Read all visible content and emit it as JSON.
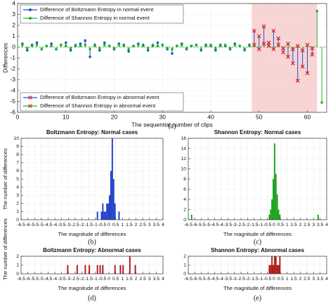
{
  "chart_data": [
    {
      "type": "stem",
      "caption": "(a)",
      "xlabel": "The sequential number of clips",
      "ylabel": "Differences",
      "xlim": [
        0,
        64
      ],
      "ylim": [
        -6,
        4
      ],
      "xticks": [
        0,
        10,
        20,
        30,
        40,
        50,
        60
      ],
      "yticks": [
        -6,
        -5,
        -4,
        -3,
        -2,
        -1,
        0,
        1,
        2,
        3,
        4
      ],
      "grid": true,
      "shaded_region": [
        48.5,
        62
      ],
      "shaded_color": "#f9d4d4",
      "series": [
        {
          "name": "Difference of Boltzmann Entropy in normal event",
          "color": "#1f4fd0",
          "marker": "circle",
          "legend": "upper left",
          "x": [
            1,
            2,
            3,
            4,
            5,
            6,
            7,
            8,
            9,
            10,
            11,
            12,
            13,
            14,
            15,
            16,
            17,
            18,
            19,
            20,
            21,
            22,
            23,
            24,
            25,
            26,
            27,
            28,
            29,
            30,
            31,
            32,
            33,
            34,
            35,
            36,
            37,
            38,
            39,
            40,
            41,
            42,
            43,
            44,
            45,
            46,
            47,
            48
          ],
          "values": [
            0.3,
            -0.3,
            0.2,
            0.4,
            -0.2,
            0.1,
            0.3,
            -0.2,
            0.2,
            0.4,
            -0.3,
            0.1,
            0.3,
            0.6,
            -0.9,
            0.2,
            -0.3,
            0.4,
            0.1,
            -0.2,
            0.3,
            0.2,
            -0.4,
            0.1,
            0.3,
            0.2,
            -0.3,
            0.1,
            0.4,
            0.2,
            -0.2,
            -0.6,
            0.1,
            0.3,
            -0.2,
            0.1,
            0.2,
            -0.3,
            0.2,
            0.1,
            -0.3,
            0.2,
            0.1,
            -0.2,
            0.3,
            0.1,
            -0.2,
            0.2
          ]
        },
        {
          "name": "Difference of Shannon Entropy in normal event",
          "color": "#22b022",
          "marker": "circle",
          "legend": "upper left",
          "x": [
            1,
            2,
            3,
            4,
            5,
            6,
            7,
            8,
            9,
            10,
            11,
            12,
            13,
            14,
            15,
            16,
            17,
            18,
            19,
            20,
            21,
            22,
            23,
            24,
            25,
            26,
            27,
            28,
            29,
            30,
            31,
            32,
            33,
            34,
            35,
            36,
            37,
            38,
            39,
            40,
            41,
            42,
            43,
            44,
            45,
            46,
            47,
            48,
            62,
            63
          ],
          "values": [
            0.2,
            -0.1,
            0.1,
            0.2,
            -0.2,
            0.1,
            0.1,
            -0.2,
            0.2,
            0.1,
            -0.1,
            0.2,
            0.1,
            0.2,
            -0.2,
            0.1,
            -0.1,
            0.2,
            0.1,
            -0.1,
            0.2,
            0.1,
            -0.2,
            0.1,
            0.2,
            0.1,
            -0.1,
            0.2,
            0.1,
            0.2,
            -0.1,
            -0.2,
            0.1,
            0.2,
            -0.1,
            0.1,
            0.2,
            -0.2,
            0.1,
            0.2,
            -0.1,
            0.1,
            0.2,
            -0.1,
            0.2,
            0.1,
            -0.3,
            0.1,
            3.3,
            -5.1
          ]
        },
        {
          "name": "Difference of Boltzmann Entropy in abnormal event",
          "color": "#1f4fd0",
          "marker_color": "#d42020",
          "marker": "cross",
          "legend": "lower left",
          "x": [
            49,
            50,
            51,
            52,
            53,
            54,
            55,
            56,
            57,
            58,
            59,
            60,
            61
          ],
          "values": [
            1.5,
            1.0,
            1.9,
            0.4,
            1.5,
            0.8,
            -0.5,
            -0.9,
            -1.5,
            -3.1,
            -1.8,
            -2.4,
            -0.7
          ]
        },
        {
          "name": "Difference of Shannon Entropy in abnormal event",
          "color": "#22b022",
          "marker_color": "#d42020",
          "marker": "cross",
          "legend": "lower left",
          "x": [
            49,
            50,
            51,
            52,
            53,
            54,
            55,
            56,
            57,
            58,
            59,
            60,
            61
          ],
          "values": [
            0.2,
            -0.2,
            0.3,
            0.1,
            -0.2,
            0.2,
            -0.1,
            0.3,
            -0.2,
            0.1,
            -0.3,
            0.2,
            -0.1
          ]
        }
      ]
    },
    {
      "type": "histogram",
      "caption": "(b)",
      "title": "Boltzmann Entropy: Normal cases",
      "xlabel": "The magnitude of differences",
      "ylabel": "The number of differences",
      "color": "#1f3fc8",
      "bins": [
        -1.0,
        -0.9,
        -0.8,
        -0.7,
        -0.6,
        -0.5,
        -0.4,
        -0.3,
        -0.2,
        -0.1,
        0,
        0.1,
        0.2,
        0.3,
        0.4,
        0.5,
        0.6,
        0.7,
        0.8,
        0.9,
        1.0
      ],
      "counts": [
        0,
        1,
        0,
        0,
        1,
        2,
        1,
        1,
        2,
        2,
        3,
        6,
        10,
        5,
        2,
        0,
        0,
        1,
        0,
        0
      ],
      "xlim": [
        -6.5,
        4
      ],
      "ylim": [
        0,
        10
      ],
      "xticks": [
        -6.5,
        -6,
        -5.5,
        -5,
        -4.5,
        -4,
        -3.5,
        -3,
        -2.5,
        -2,
        -1.5,
        -1,
        -0.5,
        0,
        0.5,
        1,
        1.5,
        2,
        2.5,
        3,
        3.5,
        4
      ],
      "yticks": [
        0,
        1,
        2,
        3,
        4,
        5,
        6,
        7,
        8,
        9,
        10
      ],
      "grid": true
    },
    {
      "type": "histogram",
      "caption": "(c)",
      "title": "Shannon Entropy: Normal cases",
      "xlabel": "The magnitude of differences",
      "color": "#1aa01a",
      "bins": [
        -6.3,
        -6.2,
        -0.4,
        -0.3,
        -0.2,
        -0.1,
        0,
        0.1,
        0.2,
        0.3,
        0.4,
        0.5,
        3.3,
        3.4
      ],
      "counts": [
        1,
        0,
        1,
        2,
        4,
        8,
        15,
        9,
        5,
        2,
        1,
        0,
        1
      ],
      "xlim": [
        -6.5,
        4
      ],
      "ylim": [
        0,
        16
      ],
      "xticks": [
        -6.5,
        -6,
        -5.5,
        -5,
        -4.5,
        -4,
        -3.5,
        -3,
        -2.5,
        -2,
        -1.5,
        -1,
        -0.5,
        0,
        0.5,
        1,
        1.5,
        2,
        2.5,
        3,
        3.5,
        4
      ],
      "yticks": [
        0,
        2,
        4,
        6,
        8,
        10,
        12,
        14,
        16
      ],
      "grid": true
    },
    {
      "type": "histogram",
      "caption": "(d)",
      "title": "Boltzmann Entropy: Abnormal cases",
      "xlabel": "The magnitude of differences",
      "ylabel": "The number of differences",
      "color": "#b01818",
      "bins": [
        -3.1,
        -3.0,
        -2.4,
        -2.3,
        -1.8,
        -1.7,
        -1.5,
        -1.4,
        -0.9,
        -0.8,
        -0.7,
        -0.6,
        -0.5,
        -0.4,
        0.4,
        0.5,
        0.8,
        0.9,
        1.0,
        1.1,
        1.5,
        1.6,
        1.9,
        2.0
      ],
      "counts": [
        1,
        0,
        1,
        0,
        1,
        0,
        1,
        0,
        1,
        0,
        1,
        0,
        1,
        0,
        1,
        0,
        1,
        0,
        1,
        0,
        2,
        0,
        1
      ],
      "xlim": [
        -6.5,
        4
      ],
      "ylim": [
        0,
        2
      ],
      "xticks": [
        -6.5,
        -6,
        -5.5,
        -5,
        -4.5,
        -4,
        -3.5,
        -3,
        -2.5,
        -2,
        -1.5,
        -1,
        -0.5,
        0,
        0.5,
        1,
        1.5,
        2,
        2.5,
        3,
        3.5,
        4
      ],
      "yticks": [
        0,
        1,
        2
      ],
      "grid": true
    },
    {
      "type": "histogram",
      "caption": "(e)",
      "title": "Shannon Entropy: Abnormal cases",
      "xlabel": "The magnitude of differences",
      "color": "#b01818",
      "bins": [
        -0.4,
        -0.3,
        -0.2,
        -0.1,
        0,
        0.1,
        0.2,
        0.3,
        0.4,
        0.5
      ],
      "counts": [
        1,
        1,
        2,
        1,
        2,
        2,
        1,
        1,
        2
      ],
      "xlim": [
        -6.5,
        4
      ],
      "ylim": [
        0,
        2
      ],
      "xticks": [
        -6.5,
        -6,
        -5.5,
        -5,
        -4.5,
        -4,
        -3.5,
        -3,
        -2.5,
        -2,
        -1.5,
        -1,
        -0.5,
        0,
        0.5,
        1,
        1.5,
        2,
        2.5,
        3,
        3.5,
        4
      ],
      "yticks": [
        0,
        1,
        2
      ],
      "grid": true
    }
  ]
}
